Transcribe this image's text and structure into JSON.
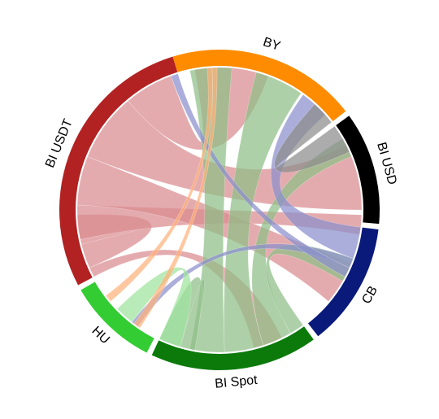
{
  "chart_data": {
    "type": "chord",
    "title": "",
    "segments": [
      {
        "name": "BY",
        "color": "#FF8C00",
        "angles_deg": [
          -17.0,
          52.0
        ]
      },
      {
        "name": "BI USD",
        "color": "#000000",
        "angles_deg": [
          54.0,
          95.0
        ]
      },
      {
        "name": "CB",
        "color": "#0A1A7A",
        "angles_deg": [
          97.0,
          142.0
        ]
      },
      {
        "name": "BI Spot",
        "color": "#0B7A0B",
        "angles_deg": [
          144.0,
          205.0
        ]
      },
      {
        "name": "HU",
        "color": "#33CC33",
        "angles_deg": [
          207.0,
          240.0
        ]
      },
      {
        "name": "BI USDT",
        "color": "#B22222",
        "angles_deg": [
          242.0,
          343.0
        ]
      }
    ],
    "ribbon_colors": {
      "BI USDT": "#D98A8F",
      "BI Spot": "#8DBE87",
      "CB": "#8A8FCC",
      "BI USD": "#8C8C8C",
      "HU": "#9EE39E",
      "BY": "#FFB27A"
    },
    "ribbons": [
      {
        "color_of": "BI USDT",
        "source": [
          246,
          258
        ],
        "target": [
          256,
          268
        ],
        "note": "self"
      },
      {
        "color_of": "BI USDT",
        "source": [
          258,
          272
        ],
        "target": [
          92,
          100
        ]
      },
      {
        "color_of": "BI USDT",
        "source": [
          272,
          292
        ],
        "target": [
          112,
          130
        ]
      },
      {
        "color_of": "BI USDT",
        "source": [
          292,
          320
        ],
        "target": [
          63,
          90
        ]
      },
      {
        "color_of": "BI USDT",
        "source": [
          320,
          340
        ],
        "target": [
          -10,
          20
        ]
      },
      {
        "color_of": "BI USDT",
        "source": [
          242,
          246
        ],
        "target": [
          154,
          166
        ]
      },
      {
        "color_of": "BI Spot",
        "source": [
          162,
          178
        ],
        "target": [
          15,
          35
        ]
      },
      {
        "color_of": "BI Spot",
        "source": [
          178,
          192
        ],
        "target": [
          -12,
          5
        ]
      },
      {
        "color_of": "BI Spot",
        "source": [
          150,
          162
        ],
        "target": [
          60,
          68
        ]
      },
      {
        "color_of": "BI Spot",
        "source": [
          144,
          150
        ],
        "target": [
          110,
          120
        ]
      },
      {
        "color_of": "BI Spot",
        "source": [
          190,
          205
        ],
        "target": [
          190,
          196
        ],
        "note": "self"
      },
      {
        "color_of": "CB",
        "source": [
          97,
          110
        ],
        "target": [
          36,
          48
        ]
      },
      {
        "color_of": "CB",
        "source": [
          110,
          114
        ],
        "target": [
          215,
          218
        ]
      },
      {
        "color_of": "CB",
        "source": [
          114,
          118
        ],
        "target": [
          340,
          343
        ]
      },
      {
        "color_of": "BI USD",
        "source": [
          54,
          66
        ],
        "target": [
          42,
          52
        ]
      },
      {
        "color_of": "HU",
        "source": [
          218,
          226
        ],
        "target": [
          196,
          205
        ]
      },
      {
        "color_of": "BY",
        "source": [
          -5,
          -3
        ],
        "target": [
          230,
          233
        ]
      },
      {
        "color_of": "BY",
        "source": [
          -3,
          -1
        ],
        "target": [
          214,
          217
        ]
      }
    ]
  }
}
